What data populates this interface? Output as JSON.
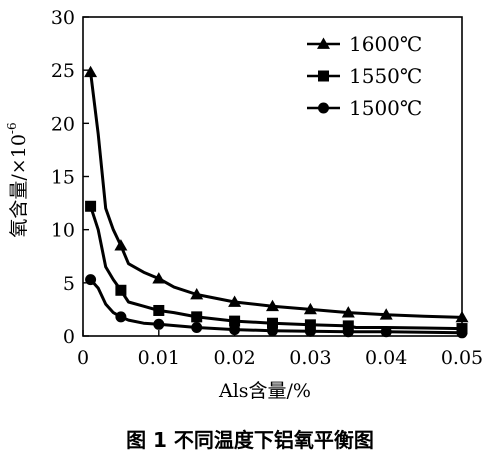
{
  "caption": "图 1  不同温度下铝氧平衡图",
  "chart_data": {
    "type": "line",
    "xlabel": "Als含量/%",
    "ylabel": "氧含量/×10",
    "ylabel_exponent": "-6",
    "xlim": [
      0,
      0.05
    ],
    "ylim": [
      0,
      30
    ],
    "x_ticks": [
      0,
      0.01,
      0.02,
      0.03,
      0.04,
      0.05
    ],
    "x_tick_labels": [
      "0",
      "0.01",
      "0.02",
      "0.03",
      "0.04",
      "0.05"
    ],
    "y_ticks": [
      0,
      5,
      10,
      15,
      20,
      25,
      30
    ],
    "y_tick_labels": [
      "0",
      "5",
      "10",
      "15",
      "20",
      "25",
      "30"
    ],
    "grid": false,
    "legend_position": "top-right",
    "series": [
      {
        "name": "1600℃",
        "marker": "triangle",
        "x": [
          0.001,
          0.002,
          0.003,
          0.004,
          0.005,
          0.006,
          0.008,
          0.01,
          0.012,
          0.015,
          0.02,
          0.025,
          0.03,
          0.035,
          0.04,
          0.045,
          0.05
        ],
        "y": [
          24.8,
          19.0,
          12.0,
          10.0,
          8.5,
          6.8,
          6.0,
          5.4,
          4.6,
          3.9,
          3.2,
          2.8,
          2.5,
          2.2,
          2.0,
          1.85,
          1.75
        ],
        "marker_x": [
          0.001,
          0.005,
          0.01,
          0.015,
          0.02,
          0.025,
          0.03,
          0.035,
          0.04,
          0.05
        ],
        "marker_y": [
          24.8,
          8.5,
          5.4,
          3.9,
          3.2,
          2.8,
          2.5,
          2.2,
          2.0,
          1.75
        ]
      },
      {
        "name": "1550℃",
        "marker": "square",
        "x": [
          0.001,
          0.002,
          0.003,
          0.004,
          0.005,
          0.006,
          0.008,
          0.01,
          0.012,
          0.015,
          0.02,
          0.025,
          0.03,
          0.035,
          0.036,
          0.04,
          0.045,
          0.05
        ],
        "y": [
          12.2,
          10.0,
          6.5,
          5.3,
          4.3,
          3.2,
          2.8,
          2.4,
          2.2,
          1.8,
          1.4,
          1.2,
          1.05,
          0.95,
          0.8,
          0.8,
          0.75,
          0.7
        ],
        "marker_x": [
          0.001,
          0.005,
          0.01,
          0.015,
          0.02,
          0.025,
          0.03,
          0.035,
          0.05
        ],
        "marker_y": [
          12.2,
          4.3,
          2.4,
          1.8,
          1.4,
          1.2,
          1.05,
          0.95,
          0.7
        ]
      },
      {
        "name": "1500℃",
        "marker": "circle",
        "x": [
          0.001,
          0.002,
          0.003,
          0.004,
          0.005,
          0.006,
          0.008,
          0.01,
          0.015,
          0.02,
          0.025,
          0.03,
          0.035,
          0.04,
          0.045,
          0.05
        ],
        "y": [
          5.3,
          4.5,
          3.0,
          2.2,
          1.8,
          1.5,
          1.2,
          1.1,
          0.8,
          0.6,
          0.5,
          0.45,
          0.4,
          0.4,
          0.35,
          0.3
        ],
        "marker_x": [
          0.001,
          0.005,
          0.01,
          0.015,
          0.02,
          0.025,
          0.03,
          0.035,
          0.04,
          0.05
        ],
        "marker_y": [
          5.3,
          1.8,
          1.1,
          0.8,
          0.6,
          0.5,
          0.45,
          0.4,
          0.4,
          0.3
        ]
      }
    ]
  }
}
